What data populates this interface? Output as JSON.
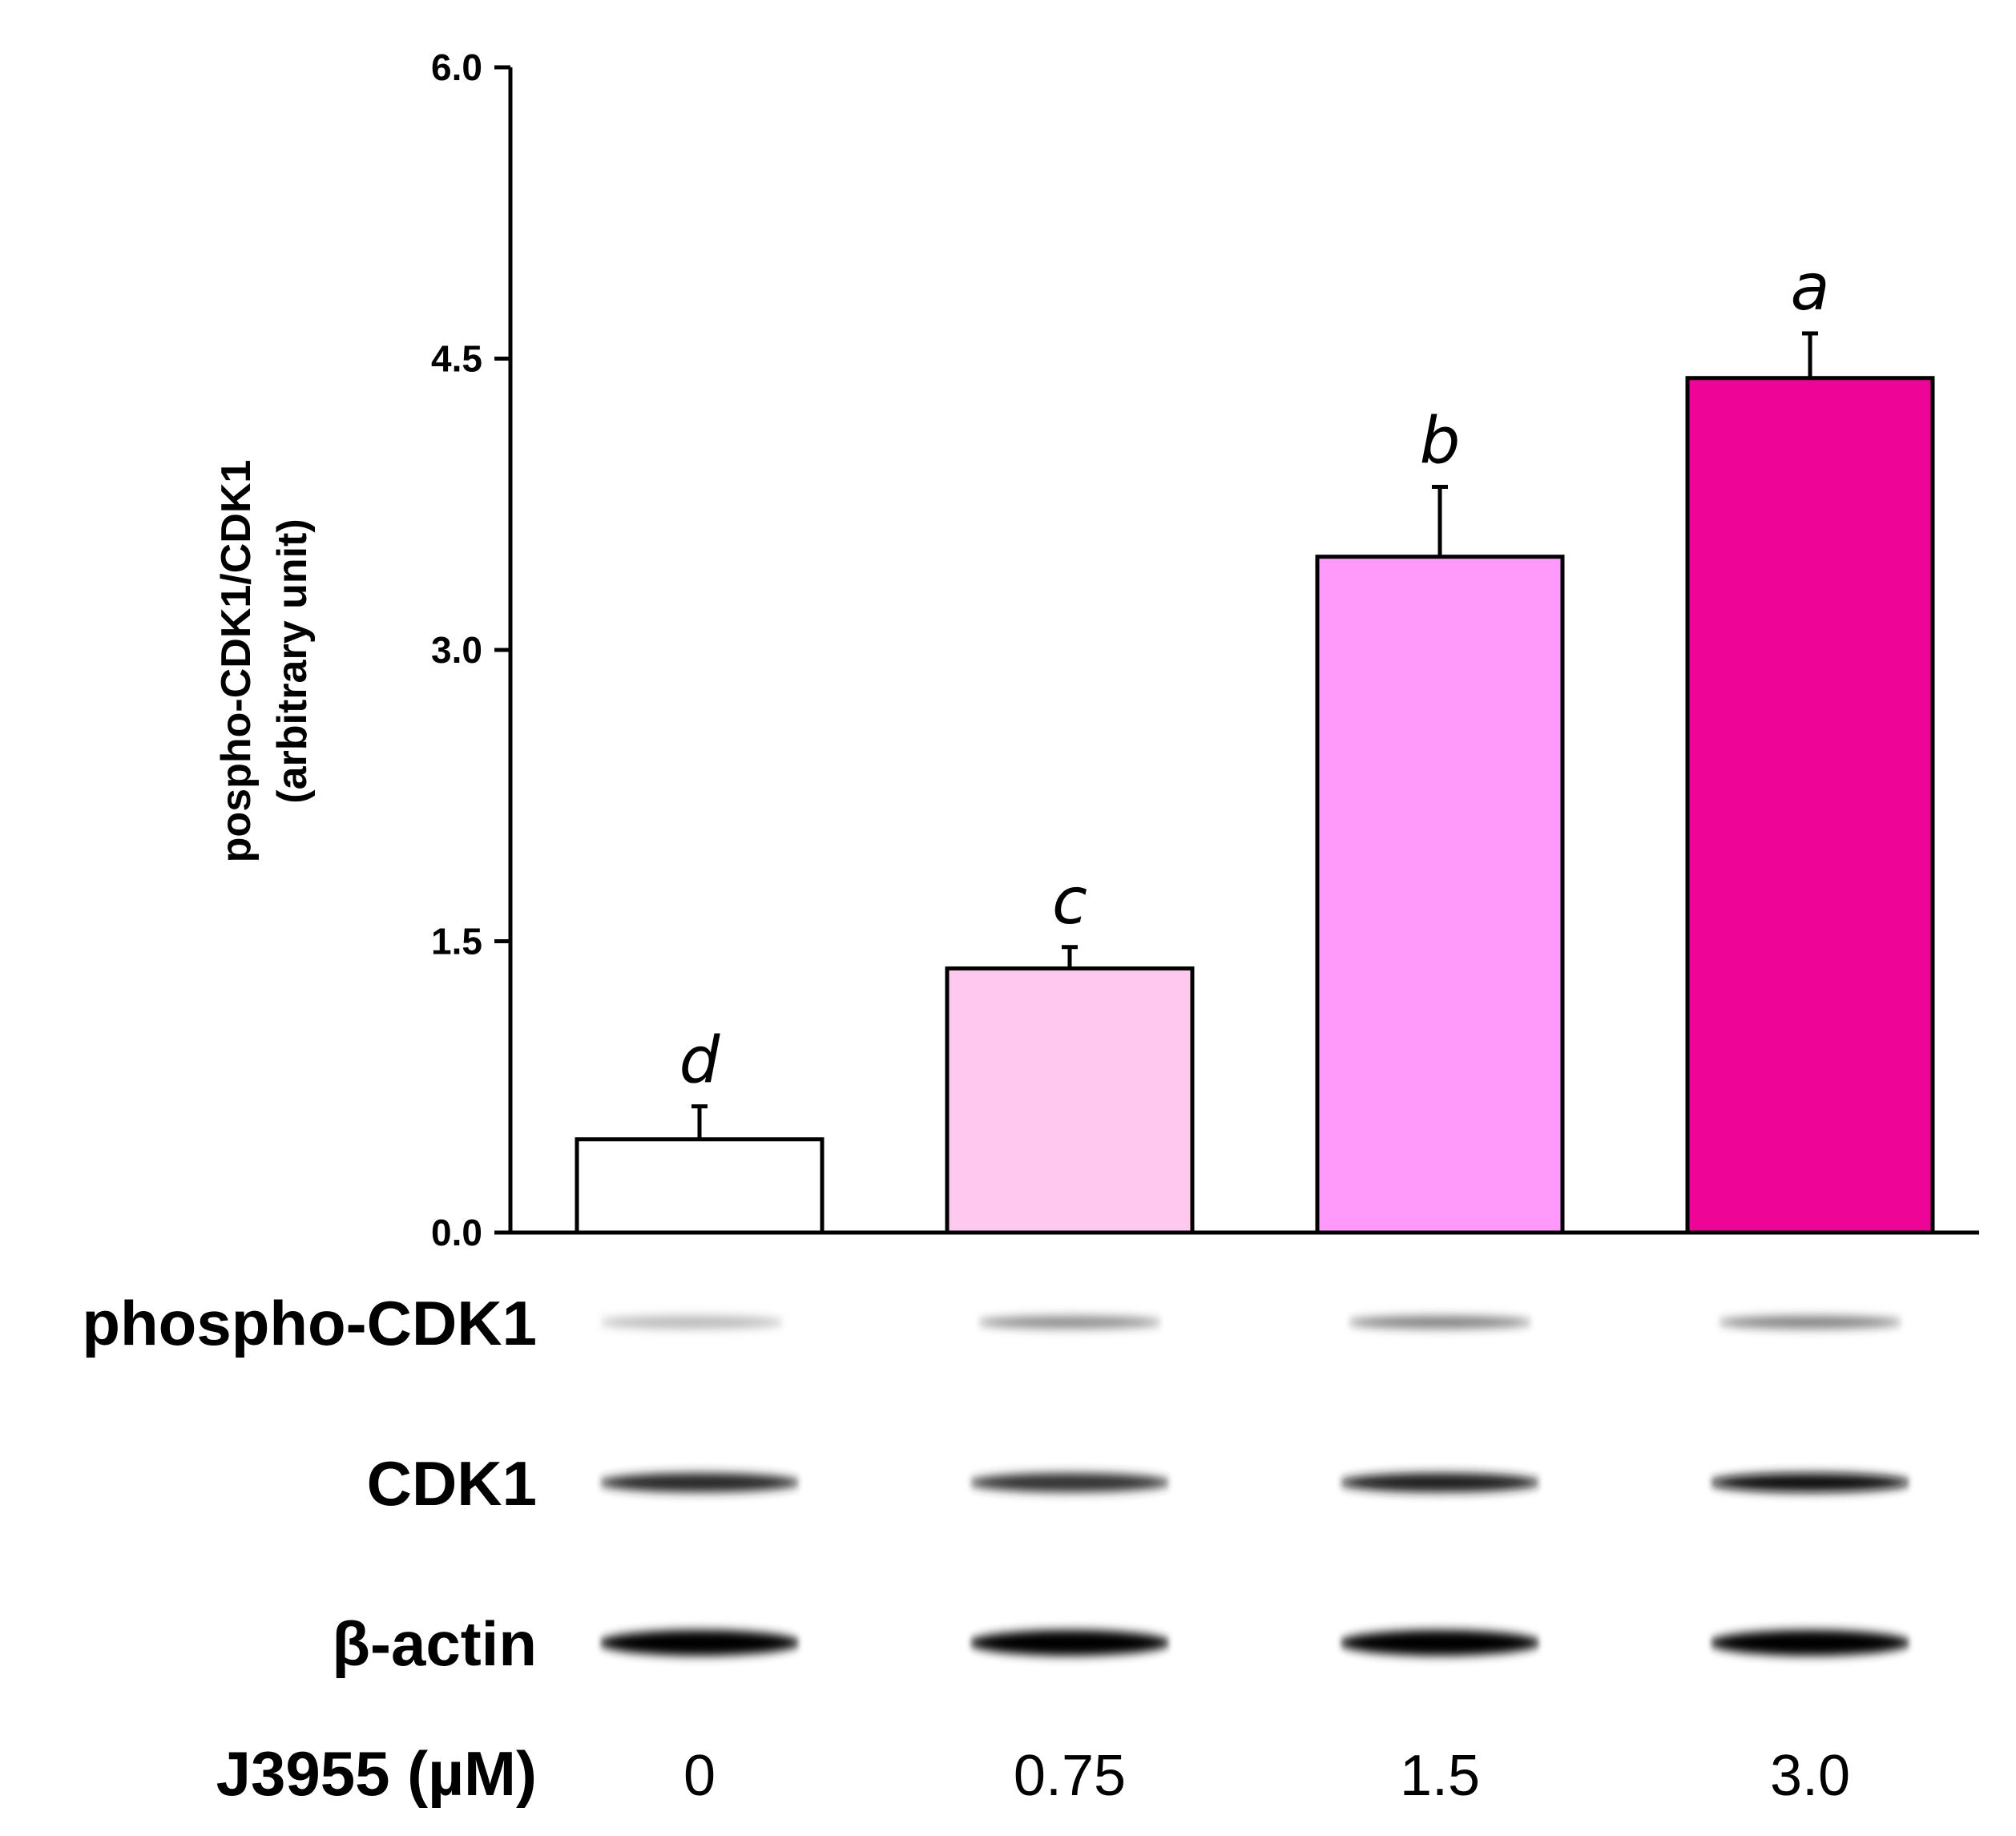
{
  "chart_data": {
    "type": "bar",
    "title": "",
    "ylabel": [
      "pospho-CDK1/CDK1",
      "(arbitrary unit)"
    ],
    "xlabel": "J3955 (µM)",
    "categories": [
      "0",
      "0.75",
      "1.5",
      "3.0"
    ],
    "values": [
      0.48,
      1.36,
      3.48,
      4.4
    ],
    "errors": [
      0.17,
      0.11,
      0.36,
      0.23
    ],
    "significance": [
      "d",
      "c",
      "b",
      "a"
    ],
    "bar_colors": [
      "#ffffff",
      "#ffc8ef",
      "#ff99fa",
      "#ee0497"
    ],
    "ylim": [
      0,
      6.0
    ],
    "yticks": [
      0.0,
      1.5,
      3.0,
      4.5,
      6.0
    ],
    "ytick_labels": [
      "0.0",
      "1.5",
      "3.0",
      "4.5",
      "6.0"
    ]
  },
  "blot": {
    "rows": [
      {
        "label": "phospho-CDK1",
        "intensities": [
          0.28,
          0.45,
          0.5,
          0.5
        ]
      },
      {
        "label": "CDK1",
        "intensities": [
          0.85,
          0.8,
          0.88,
          0.95
        ]
      },
      {
        "label": "β-actin",
        "intensities": [
          1.0,
          1.0,
          1.0,
          1.0
        ]
      }
    ]
  }
}
